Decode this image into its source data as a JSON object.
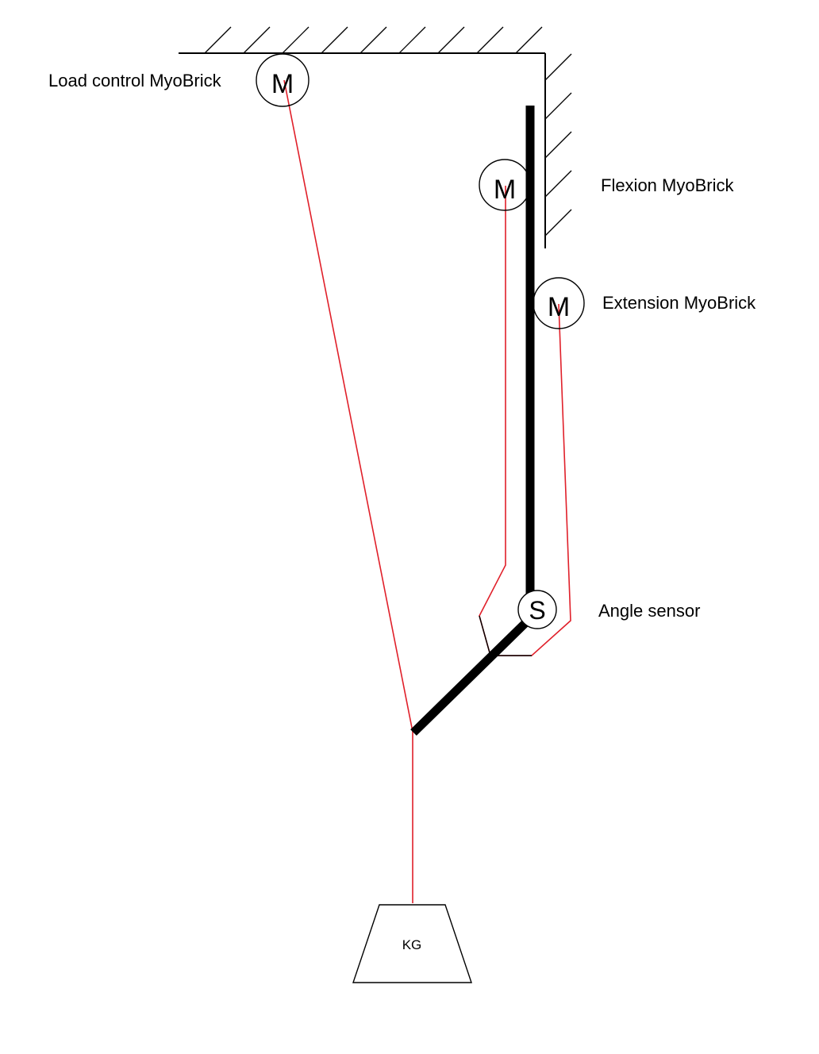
{
  "labels": {
    "load_control": "Load control MyoBrick",
    "flexion": "Flexion MyoBrick",
    "extension": "Extension MyoBrick",
    "angle_sensor": "Angle sensor"
  },
  "symbols": {
    "motor_load": "M",
    "motor_flexion": "M",
    "motor_extension": "M",
    "sensor": "S",
    "weight": "KG"
  },
  "colors": {
    "tendon": "#e0202a",
    "structure": "#000000",
    "background": "#ffffff"
  }
}
